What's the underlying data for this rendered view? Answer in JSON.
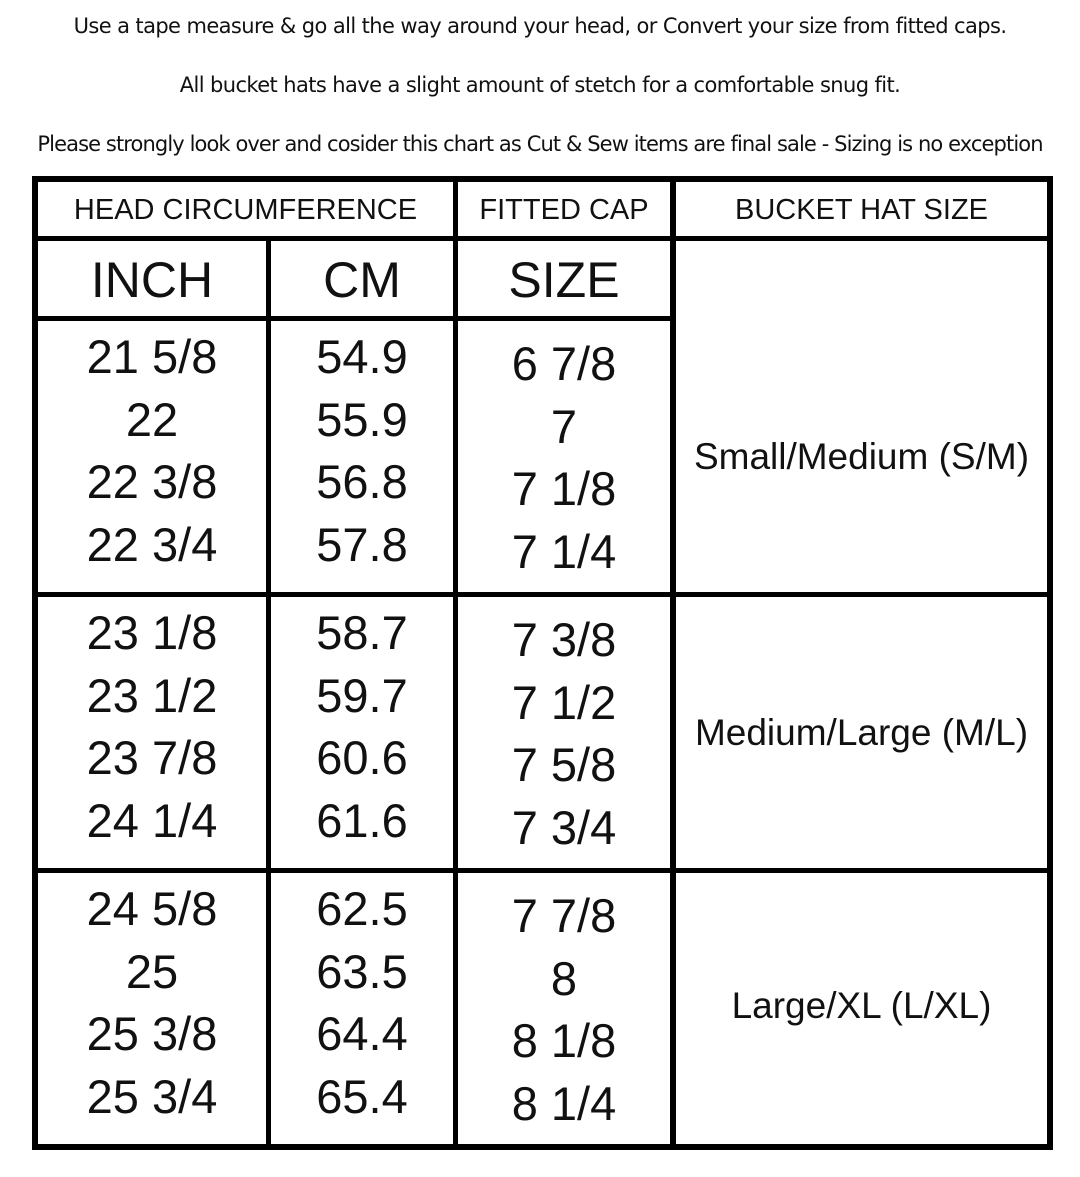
{
  "notes": [
    "Use a tape measure & go all the way around your head, or Convert your size from fitted caps.",
    "All bucket hats have a slight amount of stetch for a comfortable snug fit.",
    "Please strongly look over and cosider this chart as Cut & Sew items are final sale - Sizing is no exception"
  ],
  "table": {
    "headers": {
      "head_circumference": "HEAD CIRCUMFERENCE",
      "fitted_cap": "FITTED CAP",
      "bucket_hat_size": "BUCKET HAT SIZE",
      "inch": "INCH",
      "cm": "CM",
      "size": "SIZE"
    },
    "groups": [
      {
        "inch": [
          "21 5/8",
          "22",
          "22 3/8",
          "22 3/4"
        ],
        "cm": [
          "54.9",
          "55.9",
          "56.8",
          "57.8"
        ],
        "size": [
          "6 7/8",
          "7",
          "7 1/8",
          "7 1/4"
        ],
        "bucket": "Small/Medium (S/M)"
      },
      {
        "inch": [
          "23 1/8",
          "23 1/2",
          "23 7/8",
          "24 1/4"
        ],
        "cm": [
          "58.7",
          "59.7",
          "60.6",
          "61.6"
        ],
        "size": [
          "7 3/8",
          "7 1/2",
          "7 5/8",
          "7 3/4"
        ],
        "bucket": "Medium/Large (M/L)"
      },
      {
        "inch": [
          "24 5/8",
          "25",
          "25 3/8",
          "25 3/4"
        ],
        "cm": [
          "62.5",
          "63.5",
          "64.4",
          "65.4"
        ],
        "size": [
          "7 7/8",
          "8",
          "8 1/8",
          "8 1/4"
        ],
        "bucket": "Large/XL (L/XL)"
      }
    ]
  }
}
